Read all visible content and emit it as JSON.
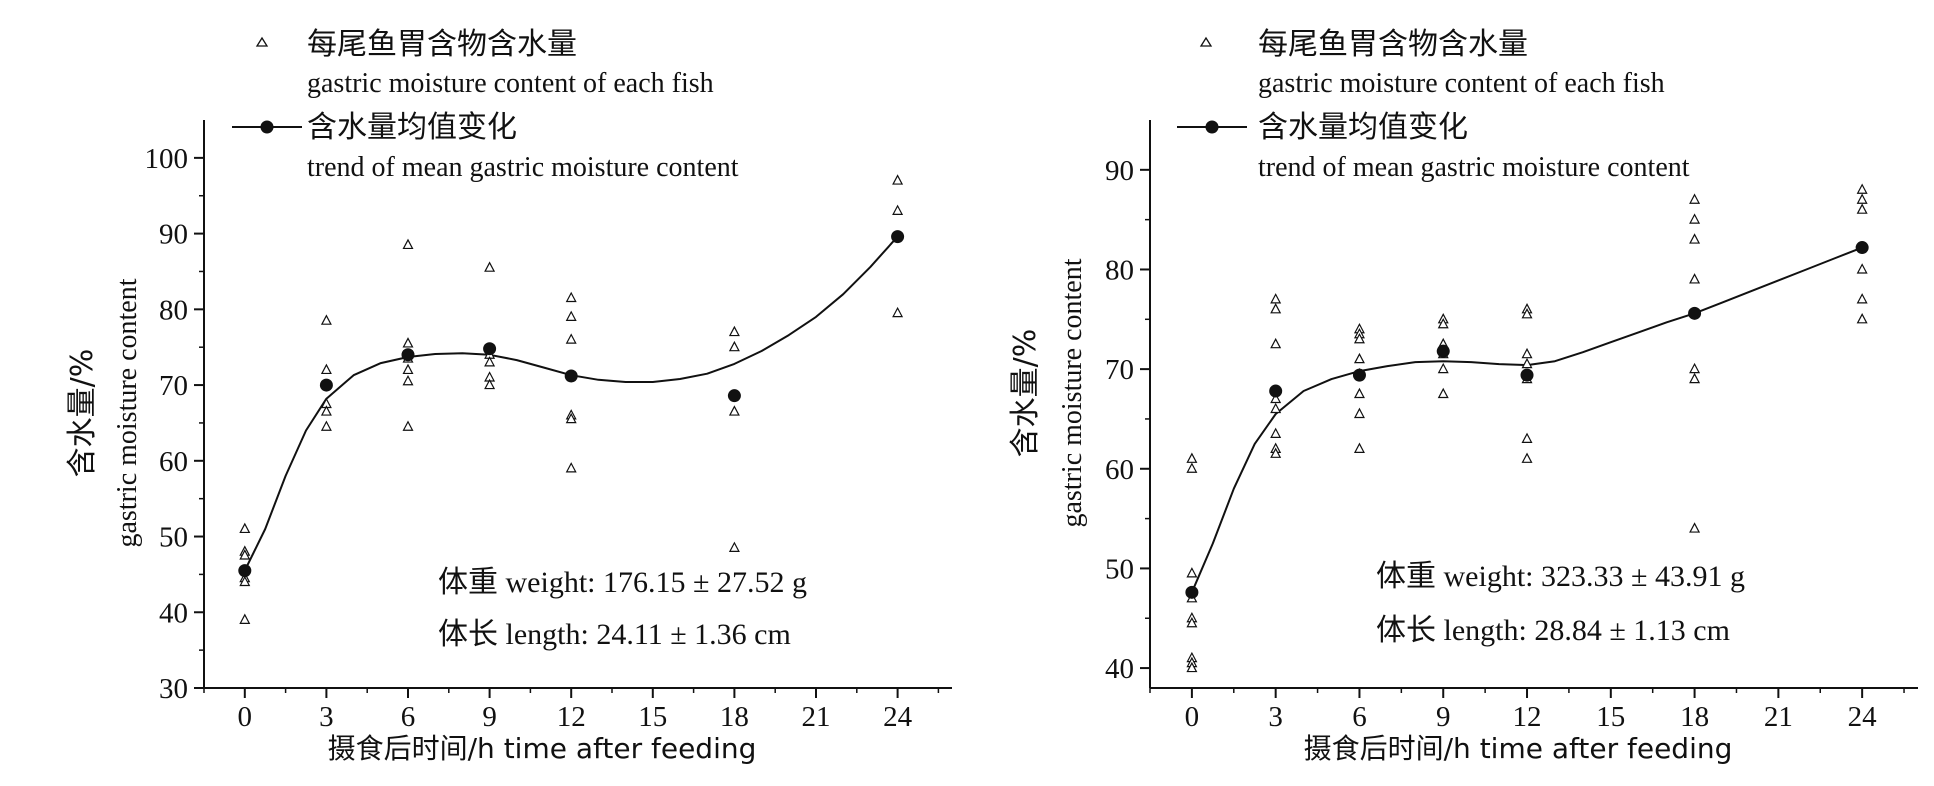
{
  "legend": {
    "points_label_cn": "每尾鱼胃含物含水量",
    "points_label_en": "gastric moisture content of each fish",
    "mean_label_cn": "含水量均值变化",
    "mean_label_en": "trend of mean gastric moisture content"
  },
  "axis_titles": {
    "y_cn": "含水量/%",
    "y_en": "gastric moisture content",
    "x": "摄食后时间/h time after feeding"
  },
  "panels": [
    {
      "weight_text": "体重 weight: 176.15 ± 27.52 g",
      "length_text": "体长 length: 24.11 ± 1.36 cm"
    },
    {
      "weight_text": "体重 weight: 323.33 ± 43.91 g",
      "length_text": "体长 length: 28.84 ± 1.13 cm"
    }
  ],
  "chart_data": [
    {
      "type": "scatter",
      "xlabel": "摄食后时间/h time after feeding",
      "ylabel": "含水量/% gastric moisture content",
      "x_ticks": [
        0,
        3,
        6,
        9,
        12,
        15,
        18,
        21,
        24
      ],
      "y_ticks": [
        30,
        40,
        50,
        60,
        70,
        80,
        90,
        100
      ],
      "xlim": [
        -1.5,
        26
      ],
      "ylim": [
        30,
        105
      ],
      "series": [
        {
          "name": "每尾鱼胃含物含水量 gastric moisture content of each fish",
          "points": [
            [
              0,
              51
            ],
            [
              0,
              48
            ],
            [
              0,
              47.5
            ],
            [
              0,
              44.5
            ],
            [
              0,
              44
            ],
            [
              0,
              39
            ],
            [
              3,
              78.5
            ],
            [
              3,
              72
            ],
            [
              3,
              67.5
            ],
            [
              3,
              66.5
            ],
            [
              3,
              64.5
            ],
            [
              6,
              88.5
            ],
            [
              6,
              75.5
            ],
            [
              6,
              73.5
            ],
            [
              6,
              72
            ],
            [
              6,
              70.5
            ],
            [
              6,
              64.5
            ],
            [
              9,
              85.5
            ],
            [
              9,
              74
            ],
            [
              9,
              73
            ],
            [
              9,
              71
            ],
            [
              9,
              70
            ],
            [
              12,
              81.5
            ],
            [
              12,
              79
            ],
            [
              12,
              76
            ],
            [
              12,
              66
            ],
            [
              12,
              65.5
            ],
            [
              12,
              59
            ],
            [
              18,
              77
            ],
            [
              18,
              75
            ],
            [
              18,
              66.5
            ],
            [
              18,
              48.5
            ],
            [
              24,
              97
            ],
            [
              24,
              93
            ],
            [
              24,
              79.5
            ]
          ]
        },
        {
          "name": "含水量均值变化 trend of mean gastric moisture content",
          "points": [
            [
              0,
              45.5
            ],
            [
              3,
              70
            ],
            [
              6,
              74
            ],
            [
              9,
              74.8
            ],
            [
              12,
              71.2
            ],
            [
              18,
              68.6
            ],
            [
              24,
              89.6
            ]
          ],
          "trend": [
            [
              0,
              45.5
            ],
            [
              0.75,
              51
            ],
            [
              1.5,
              58
            ],
            [
              2.25,
              64
            ],
            [
              3,
              68.2
            ],
            [
              4,
              71.3
            ],
            [
              5,
              72.9
            ],
            [
              6,
              73.7
            ],
            [
              7,
              74.1
            ],
            [
              8,
              74.2
            ],
            [
              9,
              74
            ],
            [
              10,
              73.3
            ],
            [
              11,
              72.3
            ],
            [
              12,
              71.3
            ],
            [
              13,
              70.7
            ],
            [
              14,
              70.4
            ],
            [
              15,
              70.4
            ],
            [
              16,
              70.8
            ],
            [
              17,
              71.5
            ],
            [
              18,
              72.8
            ],
            [
              19,
              74.5
            ],
            [
              20,
              76.6
            ],
            [
              21,
              79
            ],
            [
              22,
              82
            ],
            [
              23,
              85.6
            ],
            [
              24,
              89.6
            ]
          ]
        }
      ]
    },
    {
      "type": "scatter",
      "xlabel": "摄食后时间/h time after feeding",
      "ylabel": "含水量/% gastric moisture content",
      "x_ticks": [
        0,
        3,
        6,
        9,
        12,
        15,
        18,
        21,
        24
      ],
      "y_ticks": [
        40,
        50,
        60,
        70,
        80,
        90
      ],
      "xlim": [
        -1.5,
        26
      ],
      "ylim": [
        38,
        95
      ],
      "series": [
        {
          "name": "每尾鱼胃含物含水量 gastric moisture content of each fish",
          "points": [
            [
              0,
              61
            ],
            [
              0,
              60
            ],
            [
              0,
              49.5
            ],
            [
              0,
              47
            ],
            [
              0,
              45
            ],
            [
              0,
              44.5
            ],
            [
              0,
              41
            ],
            [
              0,
              40.5
            ],
            [
              0,
              40
            ],
            [
              3,
              77
            ],
            [
              3,
              76
            ],
            [
              3,
              72.5
            ],
            [
              3,
              67
            ],
            [
              3,
              66
            ],
            [
              3,
              63.5
            ],
            [
              3,
              62
            ],
            [
              3,
              61.5
            ],
            [
              6,
              74
            ],
            [
              6,
              73.5
            ],
            [
              6,
              73
            ],
            [
              6,
              71
            ],
            [
              6,
              69.5
            ],
            [
              6,
              67.5
            ],
            [
              6,
              65.5
            ],
            [
              6,
              62
            ],
            [
              9,
              75
            ],
            [
              9,
              74.5
            ],
            [
              9,
              72.5
            ],
            [
              9,
              71.5
            ],
            [
              9,
              70
            ],
            [
              9,
              67.5
            ],
            [
              12,
              76
            ],
            [
              12,
              75.5
            ],
            [
              12,
              71.5
            ],
            [
              12,
              70.5
            ],
            [
              12,
              69
            ],
            [
              12,
              63
            ],
            [
              12,
              61
            ],
            [
              18,
              87
            ],
            [
              18,
              85
            ],
            [
              18,
              83
            ],
            [
              18,
              79
            ],
            [
              18,
              70
            ],
            [
              18,
              69
            ],
            [
              18,
              54
            ],
            [
              24,
              88
            ],
            [
              24,
              87
            ],
            [
              24,
              86
            ],
            [
              24,
              80
            ],
            [
              24,
              77
            ],
            [
              24,
              75
            ]
          ]
        },
        {
          "name": "含水量均值变化 trend of mean gastric moisture content",
          "points": [
            [
              0,
              47.6
            ],
            [
              3,
              67.8
            ],
            [
              6,
              69.4
            ],
            [
              9,
              71.8
            ],
            [
              12,
              69.4
            ],
            [
              18,
              75.6
            ],
            [
              24,
              82.2
            ]
          ],
          "trend": [
            [
              0,
              47.6
            ],
            [
              0.75,
              52.5
            ],
            [
              1.5,
              58
            ],
            [
              2.25,
              62.5
            ],
            [
              3,
              65.5
            ],
            [
              4,
              67.8
            ],
            [
              5,
              69
            ],
            [
              6,
              69.8
            ],
            [
              7,
              70.3
            ],
            [
              8,
              70.7
            ],
            [
              9,
              70.8
            ],
            [
              10,
              70.7
            ],
            [
              11,
              70.5
            ],
            [
              12,
              70.4
            ],
            [
              13,
              70.8
            ],
            [
              14,
              71.7
            ],
            [
              15,
              72.7
            ],
            [
              16,
              73.7
            ],
            [
              17,
              74.7
            ],
            [
              18,
              75.6
            ],
            [
              19,
              76.7
            ],
            [
              20,
              77.8
            ],
            [
              21,
              78.9
            ],
            [
              22,
              80
            ],
            [
              23,
              81.1
            ],
            [
              24,
              82.2
            ]
          ]
        }
      ]
    }
  ]
}
